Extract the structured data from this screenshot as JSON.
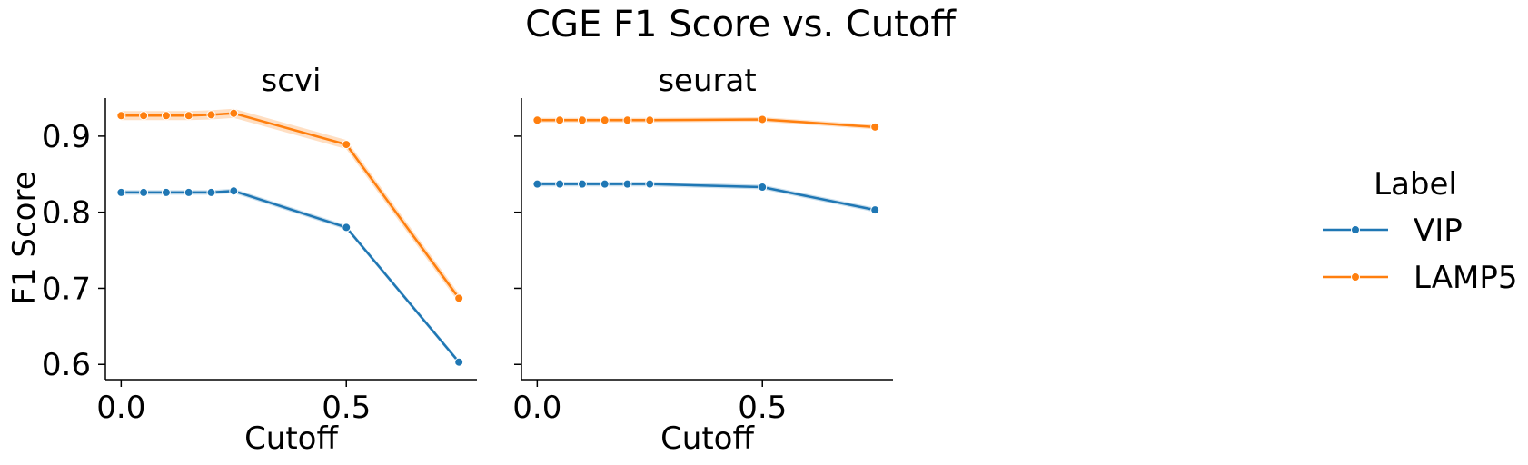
{
  "chart_data": {
    "type": "line",
    "title": "CGE F1 Score vs. Cutoff",
    "ylabel": "F1 Score",
    "ylim": [
      0.58,
      0.95
    ],
    "yticks": [
      0.6,
      0.7,
      0.8,
      0.9
    ],
    "ytick_labels": [
      "0.6",
      "0.7",
      "0.8",
      "0.9"
    ],
    "legend": {
      "title": "Label",
      "placement": "right",
      "entries": [
        {
          "name": "VIP",
          "color": "#1f77b4"
        },
        {
          "name": "LAMP5",
          "color": "#ff7f0e"
        }
      ]
    },
    "panels": [
      {
        "title": "scvi",
        "xlabel": "Cutoff",
        "xlim": [
          -0.035,
          0.79
        ],
        "xticks": [
          0.0,
          0.5
        ],
        "xtick_labels": [
          "0.0",
          "0.5"
        ],
        "x": [
          0.0,
          0.05,
          0.1,
          0.15,
          0.2,
          0.25,
          0.5,
          0.75
        ],
        "series": [
          {
            "name": "VIP",
            "color": "#1f77b4",
            "values": [
              0.826,
              0.826,
              0.826,
              0.826,
              0.826,
              0.828,
              0.78,
              0.603
            ],
            "band": 0.003
          },
          {
            "name": "LAMP5",
            "color": "#ff7f0e",
            "values": [
              0.927,
              0.927,
              0.927,
              0.927,
              0.928,
              0.93,
              0.889,
              0.687
            ],
            "band": 0.006
          }
        ]
      },
      {
        "title": "seurat",
        "xlabel": "Cutoff",
        "xlim": [
          -0.035,
          0.79
        ],
        "xticks": [
          0.0,
          0.5
        ],
        "xtick_labels": [
          "0.0",
          "0.5"
        ],
        "x": [
          0.0,
          0.05,
          0.1,
          0.15,
          0.2,
          0.25,
          0.5,
          0.75
        ],
        "series": [
          {
            "name": "VIP",
            "color": "#1f77b4",
            "values": [
              0.837,
              0.837,
              0.837,
              0.837,
              0.837,
              0.837,
              0.833,
              0.803
            ],
            "band": 0.003
          },
          {
            "name": "LAMP5",
            "color": "#ff7f0e",
            "values": [
              0.921,
              0.921,
              0.921,
              0.921,
              0.921,
              0.921,
              0.922,
              0.912
            ],
            "band": 0.003
          }
        ]
      }
    ]
  }
}
